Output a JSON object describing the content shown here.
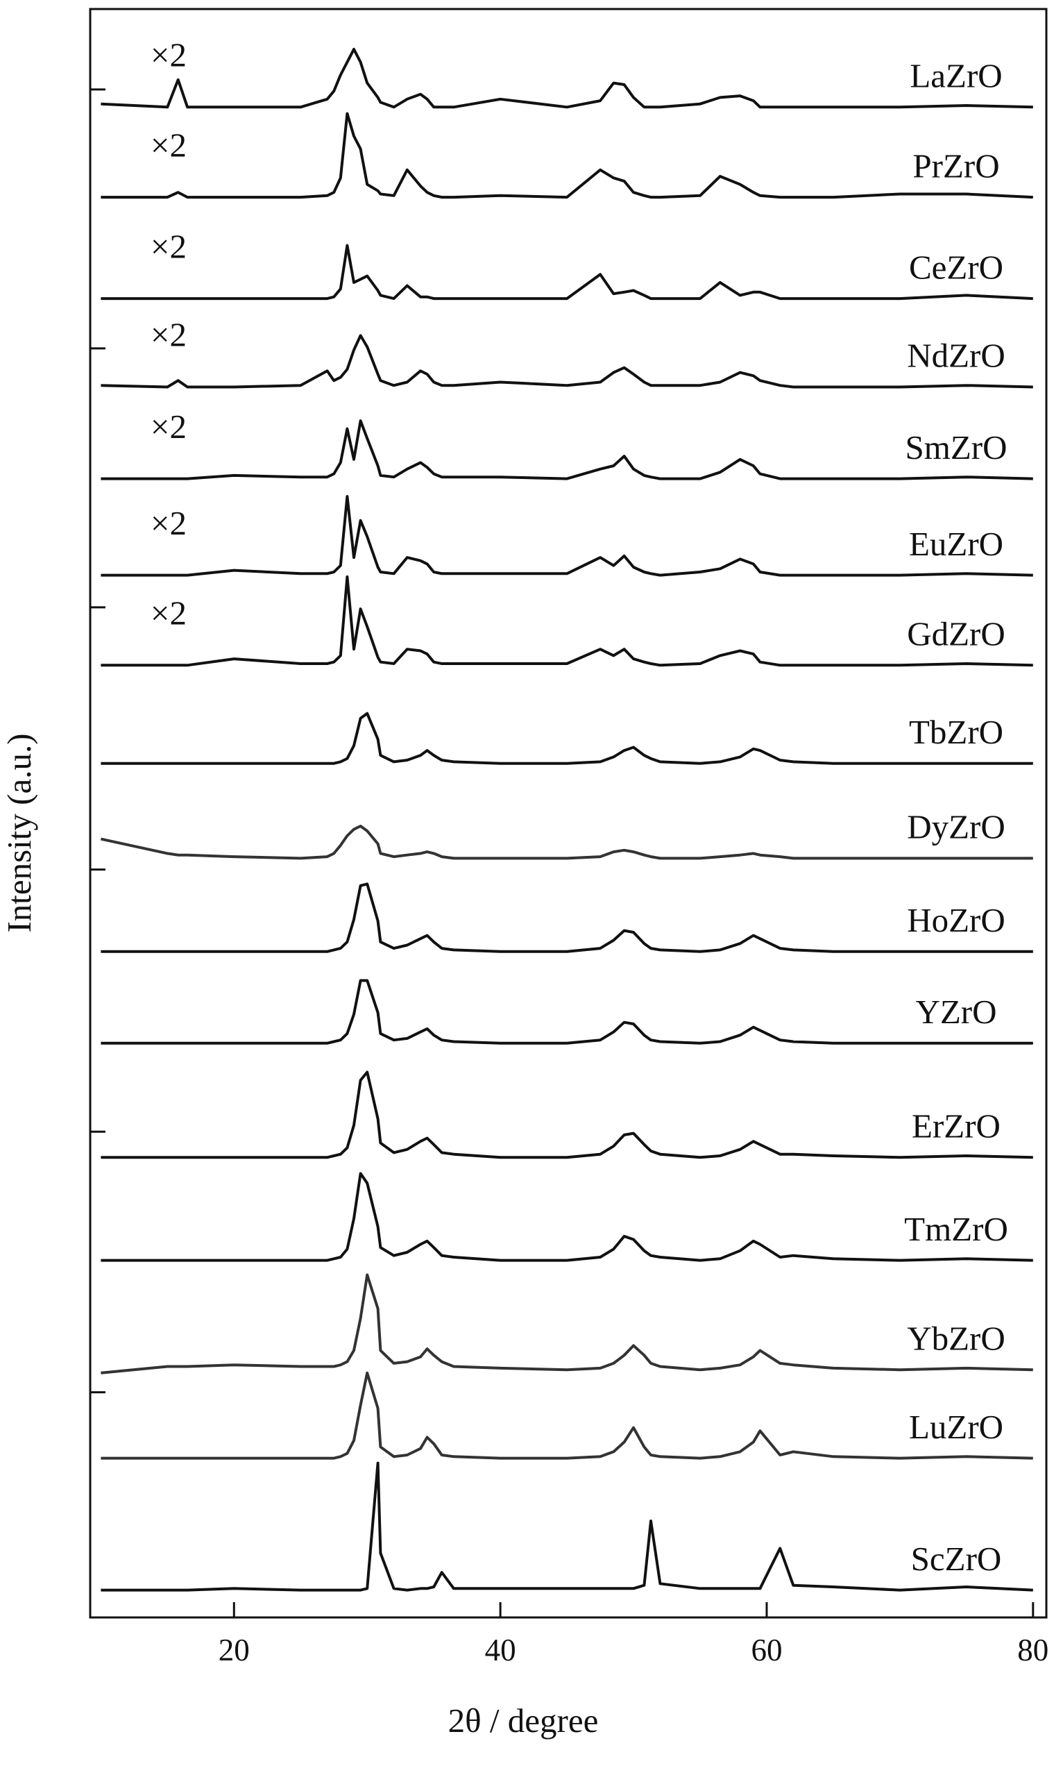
{
  "chart_data": {
    "type": "line",
    "xlabel": "2θ / degree",
    "ylabel": "Intensity (a.u.)",
    "xlim": [
      9.2,
      81
    ],
    "xticks": [
      20,
      40,
      60,
      80
    ],
    "ylim": [
      0,
      100
    ],
    "yticks": [
      95,
      78.9,
      62.8,
      46.5,
      30.2,
      14.0
    ],
    "x": [
      10,
      15,
      15.8,
      16.5,
      20,
      25,
      27,
      27.5,
      28,
      28.5,
      29,
      29.5,
      30,
      30.8,
      31,
      32,
      33,
      34,
      34.5,
      35,
      35.6,
      36.5,
      40,
      45,
      47.5,
      48.5,
      49.3,
      50,
      50.8,
      51.3,
      52,
      55,
      56.5,
      58,
      59,
      59.5,
      61,
      62,
      65,
      70,
      75,
      80
    ],
    "series": [
      {
        "name": "LaZrO",
        "scale_label": "×2",
        "color": "#111111",
        "values": [
          94.1,
          93.9,
          95.6,
          93.9,
          93.9,
          93.9,
          94.4,
          94.9,
          95.9,
          96.7,
          97.5,
          96.7,
          95.4,
          94.5,
          94.2,
          93.9,
          94.4,
          94.7,
          94.4,
          93.9,
          93.9,
          93.9,
          94.4,
          93.9,
          94.3,
          95.4,
          95.3,
          94.5,
          93.9,
          93.9,
          93.9,
          94.1,
          94.5,
          94.6,
          94.3,
          93.9,
          93.9,
          93.9,
          93.9,
          93.9,
          94.0,
          93.9
        ]
      },
      {
        "name": "PrZrO",
        "scale_label": "×2",
        "color": "#111111",
        "values": [
          88.3,
          88.3,
          88.6,
          88.3,
          88.3,
          88.3,
          88.4,
          88.6,
          89.5,
          93.5,
          92.1,
          91.3,
          89.1,
          88.7,
          88.5,
          88.4,
          90.0,
          89.0,
          88.6,
          88.4,
          88.3,
          88.3,
          88.4,
          88.3,
          90.0,
          89.5,
          89.3,
          88.6,
          88.4,
          88.3,
          88.3,
          88.4,
          89.6,
          89.1,
          88.6,
          88.4,
          88.3,
          88.3,
          88.3,
          88.5,
          88.5,
          88.3
        ]
      },
      {
        "name": "CeZrO",
        "scale_label": "×2",
        "color": "#111111",
        "values": [
          82.0,
          82.0,
          82.0,
          82.0,
          82.0,
          82.0,
          82.0,
          82.1,
          82.6,
          85.3,
          83.0,
          83.2,
          83.4,
          82.5,
          82.2,
          82.0,
          82.8,
          82.1,
          82.1,
          82.0,
          82.0,
          82.0,
          82.0,
          82.0,
          83.5,
          82.3,
          82.4,
          82.5,
          82.2,
          82.0,
          82.0,
          82.0,
          83.0,
          82.2,
          82.4,
          82.4,
          82.0,
          82.0,
          82.0,
          82.0,
          82.2,
          82.0
        ]
      },
      {
        "name": "NdZrO",
        "scale_label": "×2",
        "color": "#111111",
        "values": [
          76.6,
          76.5,
          76.9,
          76.5,
          76.5,
          76.6,
          77.5,
          76.9,
          77.1,
          77.6,
          78.8,
          79.7,
          79.0,
          77.3,
          76.9,
          76.6,
          76.8,
          77.5,
          77.3,
          76.8,
          76.6,
          76.6,
          76.8,
          76.6,
          76.8,
          77.4,
          77.7,
          77.3,
          76.8,
          76.6,
          76.6,
          76.6,
          76.8,
          77.4,
          77.2,
          76.9,
          76.6,
          76.5,
          76.5,
          76.5,
          76.6,
          76.5
        ]
      },
      {
        "name": "SmZrO",
        "scale_label": "×2",
        "color": "#111111",
        "values": [
          70.8,
          70.8,
          70.8,
          70.8,
          71.0,
          70.9,
          70.9,
          71.1,
          71.8,
          73.9,
          72.0,
          74.4,
          73.3,
          71.6,
          71.0,
          70.9,
          71.4,
          71.8,
          71.5,
          71.1,
          70.9,
          70.9,
          70.9,
          70.8,
          71.4,
          71.6,
          72.2,
          71.4,
          71.0,
          70.9,
          70.8,
          70.8,
          71.2,
          72.0,
          71.6,
          71.1,
          70.8,
          70.8,
          70.8,
          70.8,
          70.9,
          70.8
        ]
      },
      {
        "name": "EuZrO",
        "scale_label": "×2",
        "color": "#111111",
        "values": [
          64.8,
          64.8,
          64.8,
          64.8,
          65.1,
          64.9,
          64.9,
          65.0,
          65.4,
          69.7,
          65.9,
          68.2,
          67.2,
          65.3,
          65.0,
          64.9,
          65.9,
          65.7,
          65.5,
          65.0,
          64.9,
          64.9,
          64.9,
          64.9,
          65.9,
          65.4,
          66.0,
          65.3,
          65.0,
          64.9,
          64.8,
          65.0,
          65.2,
          65.8,
          65.5,
          65.0,
          64.8,
          64.8,
          64.8,
          64.8,
          64.9,
          64.8
        ]
      },
      {
        "name": "GdZrO",
        "scale_label": "×2",
        "color": "#111111",
        "values": [
          59.2,
          59.2,
          59.2,
          59.2,
          59.6,
          59.3,
          59.3,
          59.4,
          59.8,
          64.7,
          60.2,
          62.7,
          61.6,
          59.7,
          59.4,
          59.3,
          60.2,
          60.1,
          59.9,
          59.4,
          59.3,
          59.3,
          59.3,
          59.3,
          60.2,
          59.8,
          60.2,
          59.6,
          59.4,
          59.3,
          59.2,
          59.3,
          59.8,
          60.1,
          59.9,
          59.4,
          59.2,
          59.2,
          59.2,
          59.2,
          59.3,
          59.2
        ]
      },
      {
        "name": "TbZrO",
        "color": "#111111",
        "values": [
          53.1,
          53.1,
          53.1,
          53.1,
          53.1,
          53.1,
          53.1,
          53.1,
          53.2,
          53.4,
          54.2,
          55.9,
          56.2,
          54.6,
          53.6,
          53.2,
          53.3,
          53.6,
          53.9,
          53.6,
          53.3,
          53.2,
          53.1,
          53.1,
          53.2,
          53.5,
          53.9,
          54.1,
          53.6,
          53.4,
          53.2,
          53.1,
          53.2,
          53.5,
          54.0,
          53.9,
          53.3,
          53.2,
          53.1,
          53.1,
          53.1,
          53.1
        ]
      },
      {
        "name": "DyZrO",
        "color": "#333333",
        "values": [
          48.4,
          47.5,
          47.4,
          47.4,
          47.3,
          47.2,
          47.3,
          47.5,
          48.0,
          48.6,
          49.0,
          49.2,
          48.9,
          48.1,
          47.5,
          47.3,
          47.4,
          47.5,
          47.6,
          47.5,
          47.3,
          47.2,
          47.2,
          47.2,
          47.3,
          47.6,
          47.7,
          47.6,
          47.4,
          47.3,
          47.2,
          47.2,
          47.3,
          47.4,
          47.5,
          47.4,
          47.3,
          47.2,
          47.2,
          47.2,
          47.2,
          47.2
        ]
      },
      {
        "name": "HoZrO",
        "color": "#111111",
        "values": [
          41.4,
          41.4,
          41.4,
          41.4,
          41.4,
          41.4,
          41.4,
          41.5,
          41.6,
          42.0,
          43.4,
          45.5,
          45.6,
          43.3,
          42.0,
          41.6,
          41.8,
          42.2,
          42.4,
          42.0,
          41.6,
          41.5,
          41.4,
          41.4,
          41.6,
          42.1,
          42.7,
          42.6,
          41.9,
          41.6,
          41.5,
          41.4,
          41.5,
          41.9,
          42.4,
          42.2,
          41.6,
          41.5,
          41.4,
          41.4,
          41.4,
          41.4
        ]
      },
      {
        "name": "YZrO",
        "color": "#111111",
        "values": [
          35.7,
          35.7,
          35.7,
          35.7,
          35.7,
          35.7,
          35.7,
          35.8,
          35.9,
          36.3,
          37.5,
          39.6,
          39.6,
          37.6,
          36.3,
          35.9,
          36.0,
          36.4,
          36.6,
          36.2,
          35.9,
          35.8,
          35.7,
          35.7,
          35.9,
          36.4,
          37.0,
          36.9,
          36.2,
          35.9,
          35.8,
          35.7,
          35.8,
          36.2,
          36.7,
          36.5,
          35.9,
          35.8,
          35.7,
          35.7,
          35.7,
          35.7
        ]
      },
      {
        "name": "ErZrO",
        "color": "#111111",
        "values": [
          28.6,
          28.6,
          28.6,
          28.6,
          28.6,
          28.6,
          28.6,
          28.7,
          28.8,
          29.2,
          30.6,
          33.4,
          33.9,
          31.0,
          29.5,
          28.9,
          29.1,
          29.6,
          29.8,
          29.4,
          28.9,
          28.8,
          28.6,
          28.6,
          28.8,
          29.3,
          30.0,
          30.1,
          29.4,
          29.0,
          28.8,
          28.6,
          28.7,
          29.1,
          29.6,
          29.4,
          28.8,
          28.8,
          28.7,
          28.6,
          28.7,
          28.6
        ]
      },
      {
        "name": "TmZrO",
        "color": "#111111",
        "values": [
          22.2,
          22.2,
          22.2,
          22.2,
          22.2,
          22.2,
          22.2,
          22.3,
          22.4,
          22.9,
          24.8,
          27.6,
          27.0,
          24.3,
          23.0,
          22.5,
          22.7,
          23.2,
          23.4,
          23.0,
          22.5,
          22.4,
          22.2,
          22.2,
          22.4,
          22.9,
          23.7,
          23.5,
          22.8,
          22.5,
          22.4,
          22.2,
          22.3,
          22.8,
          23.4,
          23.2,
          22.4,
          22.5,
          22.3,
          22.2,
          22.3,
          22.2
        ]
      },
      {
        "name": "YbZrO",
        "color": "#333333",
        "values": [
          15.2,
          15.6,
          15.6,
          15.6,
          15.7,
          15.6,
          15.6,
          15.6,
          15.7,
          15.9,
          16.6,
          18.6,
          21.3,
          19.2,
          16.6,
          15.8,
          15.9,
          16.2,
          16.7,
          16.3,
          15.9,
          15.6,
          15.5,
          15.4,
          15.5,
          15.8,
          16.3,
          16.9,
          16.3,
          15.8,
          15.6,
          15.4,
          15.5,
          15.7,
          16.2,
          16.6,
          15.8,
          15.7,
          15.5,
          15.4,
          15.5,
          15.4
        ]
      },
      {
        "name": "LuZrO",
        "color": "#333333",
        "values": [
          9.9,
          9.9,
          9.9,
          9.9,
          9.9,
          9.9,
          9.9,
          9.9,
          10.0,
          10.2,
          11.0,
          13.2,
          15.2,
          13.0,
          10.6,
          10.0,
          10.1,
          10.5,
          11.2,
          10.8,
          10.1,
          10.0,
          9.9,
          9.9,
          10.0,
          10.3,
          10.9,
          11.8,
          10.6,
          10.1,
          10.0,
          9.9,
          10.0,
          10.3,
          10.9,
          11.6,
          10.1,
          10.3,
          10.0,
          9.9,
          10.0,
          9.9
        ]
      },
      {
        "name": "ScZrO",
        "color": "#111111",
        "values": [
          1.7,
          1.7,
          1.7,
          1.7,
          1.8,
          1.7,
          1.7,
          1.7,
          1.7,
          1.7,
          1.7,
          1.7,
          1.8,
          9.6,
          4.0,
          1.8,
          1.7,
          1.8,
          1.8,
          1.9,
          2.8,
          1.8,
          1.8,
          1.8,
          1.8,
          1.8,
          1.8,
          1.8,
          2.0,
          6.0,
          2.1,
          1.8,
          1.8,
          1.8,
          1.8,
          1.8,
          4.3,
          2.0,
          1.9,
          1.7,
          1.9,
          1.7
        ]
      }
    ]
  }
}
